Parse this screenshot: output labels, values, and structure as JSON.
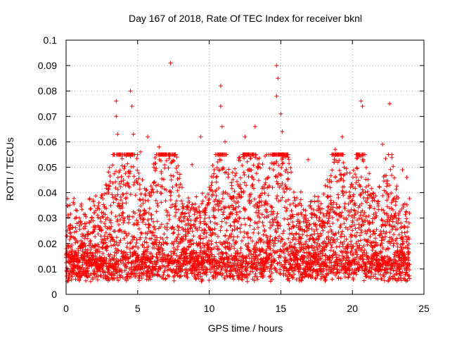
{
  "chart_data": {
    "type": "scatter",
    "title": "Day 167 of 2018, Rate Of TEC Index for receiver bknl",
    "xlabel": "GPS time / hours",
    "ylabel": "ROTI / TECUs",
    "xlim": [
      0,
      25
    ],
    "ylim": [
      0,
      0.1
    ],
    "x_ticks": [
      0,
      5,
      10,
      15,
      20,
      25
    ],
    "x_tick_labels": [
      "0",
      "5",
      "10",
      "15",
      "20",
      "25"
    ],
    "y_ticks": [
      0,
      0.01,
      0.02,
      0.03,
      0.04,
      0.05,
      0.06,
      0.07,
      0.08,
      0.09,
      0.1
    ],
    "y_tick_labels": [
      "0",
      "0.01",
      "0.02",
      "0.03",
      "0.04",
      "0.05",
      "0.06",
      "0.07",
      "0.08",
      "0.09",
      "0.1"
    ],
    "grid": true,
    "marker": "+",
    "series": [
      {
        "name": "ROTI",
        "color": "#ff0000",
        "data_range_x": [
          0,
          24
        ],
        "baseline_y": [
          0.005,
          0.02
        ],
        "notable_points": [
          {
            "x": 3.5,
            "y": 0.076
          },
          {
            "x": 3.5,
            "y": 0.07
          },
          {
            "x": 3.6,
            "y": 0.063
          },
          {
            "x": 4.5,
            "y": 0.08
          },
          {
            "x": 4.6,
            "y": 0.074
          },
          {
            "x": 4.7,
            "y": 0.063
          },
          {
            "x": 5.2,
            "y": 0.056
          },
          {
            "x": 5.7,
            "y": 0.062
          },
          {
            "x": 6.5,
            "y": 0.058
          },
          {
            "x": 7.3,
            "y": 0.091
          },
          {
            "x": 8.8,
            "y": 0.051
          },
          {
            "x": 9.4,
            "y": 0.062
          },
          {
            "x": 10.8,
            "y": 0.082
          },
          {
            "x": 10.8,
            "y": 0.074
          },
          {
            "x": 10.9,
            "y": 0.066
          },
          {
            "x": 11.1,
            "y": 0.06
          },
          {
            "x": 12.5,
            "y": 0.062
          },
          {
            "x": 13.2,
            "y": 0.066
          },
          {
            "x": 14.7,
            "y": 0.09
          },
          {
            "x": 14.8,
            "y": 0.085
          },
          {
            "x": 14.7,
            "y": 0.078
          },
          {
            "x": 15.0,
            "y": 0.071
          },
          {
            "x": 15.1,
            "y": 0.064
          },
          {
            "x": 16.9,
            "y": 0.053
          },
          {
            "x": 18.8,
            "y": 0.057
          },
          {
            "x": 19.3,
            "y": 0.062
          },
          {
            "x": 20.6,
            "y": 0.076
          },
          {
            "x": 20.7,
            "y": 0.074
          },
          {
            "x": 20.7,
            "y": 0.053
          },
          {
            "x": 22.1,
            "y": 0.059
          },
          {
            "x": 22.6,
            "y": 0.075
          },
          {
            "x": 23.5,
            "y": 0.049
          },
          {
            "x": 23.8,
            "y": 0.046
          }
        ]
      }
    ]
  }
}
